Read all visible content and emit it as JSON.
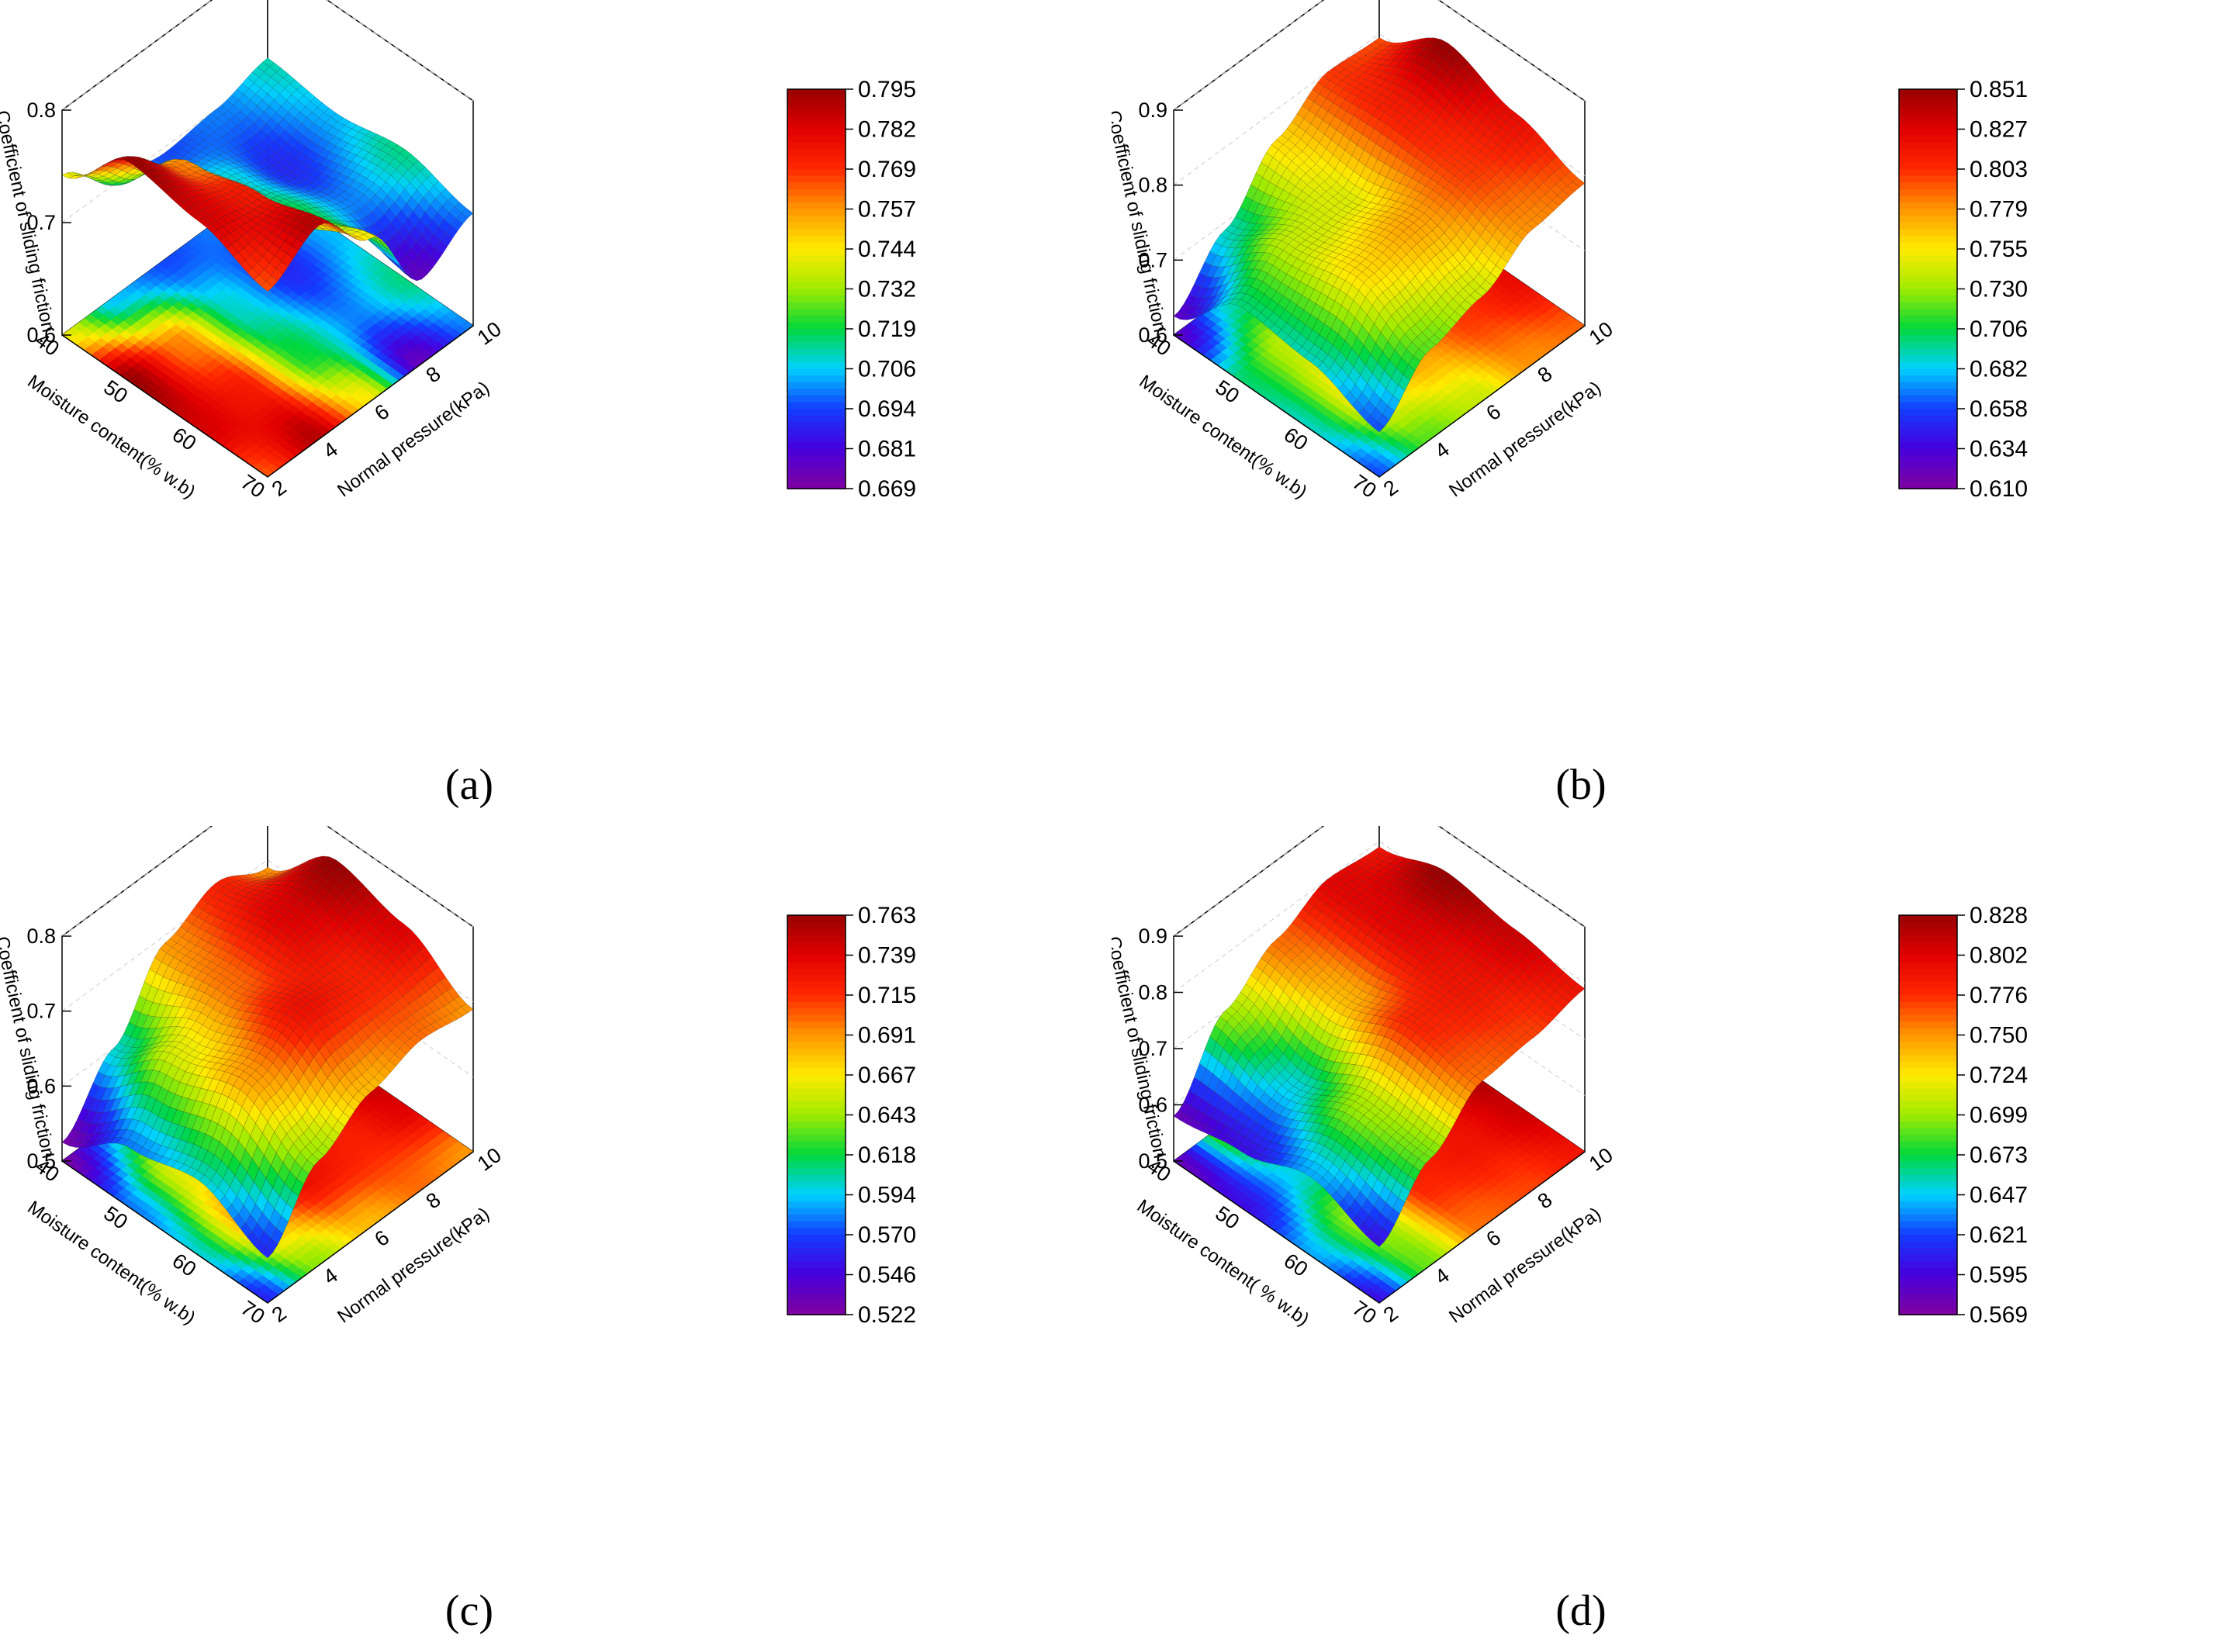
{
  "chart_data": [
    {
      "type": "surface3d",
      "panel_label": "(a)",
      "xlabel": "Moisture content(% w.b)",
      "ylabel": "Normal pressure(kPa)",
      "zlabel": "Coefficient of sliding friction",
      "x_ticks": [
        "40",
        "50",
        "60",
        "70"
      ],
      "y_ticks": [
        "2",
        "4",
        "6",
        "8",
        "10"
      ],
      "z_ticks": [
        "0.6",
        "0.7",
        "0.8"
      ],
      "zlim": [
        0.6,
        0.8
      ],
      "colorbar": {
        "min": 0.669,
        "max": 0.795,
        "ticks": [
          "0.795",
          "0.782",
          "0.769",
          "0.757",
          "0.744",
          "0.732",
          "0.719",
          "0.706",
          "0.694",
          "0.681",
          "0.669"
        ]
      },
      "moisture": [
        40,
        50,
        60,
        70
      ],
      "pressure": [
        2,
        4,
        6,
        8,
        10
      ],
      "cof": [
        [
          0.742,
          0.705,
          0.695,
          0.7,
          0.712
        ],
        [
          0.795,
          0.76,
          0.71,
          0.69,
          0.705
        ],
        [
          0.785,
          0.775,
          0.72,
          0.7,
          0.715
        ],
        [
          0.765,
          0.79,
          0.745,
          0.675,
          0.7
        ]
      ]
    },
    {
      "type": "surface3d",
      "panel_label": "(b)",
      "xlabel": "Moisture content(% w.b)",
      "ylabel": "Normal pressure(kPa)",
      "zlabel": "Coefficient of sliding friction",
      "x_ticks": [
        "40",
        "50",
        "60",
        "70"
      ],
      "y_ticks": [
        "2",
        "4",
        "6",
        "8",
        "10"
      ],
      "z_ticks": [
        "0.6",
        "0.7",
        "0.8",
        "0.9"
      ],
      "zlim": [
        0.6,
        0.9
      ],
      "colorbar": {
        "min": 0.61,
        "max": 0.851,
        "ticks": [
          "0.851",
          "0.827",
          "0.803",
          "0.779",
          "0.755",
          "0.730",
          "0.706",
          "0.682",
          "0.658",
          "0.634",
          "0.610"
        ]
      },
      "moisture": [
        40,
        50,
        60,
        70
      ],
      "pressure": [
        2,
        4,
        6,
        8,
        10
      ],
      "cof": [
        [
          0.625,
          0.69,
          0.76,
          0.8,
          0.795
        ],
        [
          0.7,
          0.74,
          0.745,
          0.81,
          0.851
        ],
        [
          0.69,
          0.76,
          0.775,
          0.8,
          0.82
        ],
        [
          0.66,
          0.72,
          0.74,
          0.78,
          0.79
        ]
      ]
    },
    {
      "type": "surface3d",
      "panel_label": "(c)",
      "xlabel": "Moisture content(% w.b)",
      "ylabel": "Normal pressure(kPa)",
      "zlabel": "Coefficient of sliding friction",
      "x_ticks": [
        "40",
        "50",
        "60",
        "70"
      ],
      "y_ticks": [
        "2",
        "4",
        "6",
        "8",
        "10"
      ],
      "z_ticks": [
        "0.5",
        "0.6",
        "0.7",
        "0.8"
      ],
      "zlim": [
        0.5,
        0.8
      ],
      "colorbar": {
        "min": 0.522,
        "max": 0.763,
        "ticks": [
          "0.763",
          "0.739",
          "0.715",
          "0.691",
          "0.667",
          "0.643",
          "0.618",
          "0.594",
          "0.570",
          "0.546",
          "0.522"
        ]
      },
      "moisture": [
        40,
        50,
        60,
        70
      ],
      "pressure": [
        2,
        4,
        6,
        8,
        10
      ],
      "cof": [
        [
          0.525,
          0.6,
          0.69,
          0.72,
          0.69
        ],
        [
          0.58,
          0.66,
          0.7,
          0.74,
          0.763
        ],
        [
          0.6,
          0.69,
          0.73,
          0.72,
          0.74
        ],
        [
          0.56,
          0.64,
          0.68,
          0.7,
          0.69
        ]
      ]
    },
    {
      "type": "surface3d",
      "panel_label": "(d)",
      "xlabel": "Moisture content( % w.b)",
      "ylabel": "Normal pressure(kPa)",
      "zlabel": "Coefficient of sliding friction",
      "x_ticks": [
        "40",
        "50",
        "60",
        "70"
      ],
      "y_ticks": [
        "2",
        "4",
        "6",
        "8",
        "10"
      ],
      "z_ticks": [
        "0.5",
        "0.6",
        "0.7",
        "0.8",
        "0.9"
      ],
      "zlim": [
        0.5,
        0.9
      ],
      "colorbar": {
        "min": 0.569,
        "max": 0.828,
        "ticks": [
          "0.828",
          "0.802",
          "0.776",
          "0.750",
          "0.724",
          "0.699",
          "0.673",
          "0.647",
          "0.621",
          "0.595",
          "0.569"
        ]
      },
      "moisture": [
        40,
        50,
        60,
        70
      ],
      "pressure": [
        2,
        4,
        6,
        8,
        10
      ],
      "cof": [
        [
          0.58,
          0.7,
          0.76,
          0.8,
          0.79
        ],
        [
          0.6,
          0.65,
          0.74,
          0.8,
          0.828
        ],
        [
          0.64,
          0.7,
          0.78,
          0.79,
          0.81
        ],
        [
          0.6,
          0.69,
          0.76,
          0.77,
          0.79
        ]
      ]
    }
  ]
}
